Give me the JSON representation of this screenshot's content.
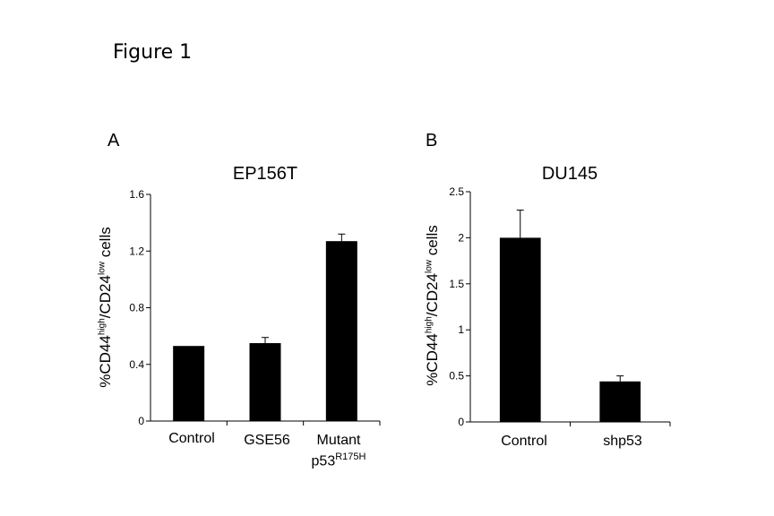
{
  "figure_title": "Figure 1",
  "panels": [
    {
      "letter": "A"
    },
    {
      "letter": "B"
    }
  ],
  "ylabel_parts": {
    "prefix": "%CD44",
    "sup1": "high",
    "mid": "/CD24",
    "sup2": "low",
    "suffix": " cells"
  },
  "mutant_label": {
    "line1": "Mutant",
    "line2_base": "p53",
    "line2_sup": "R175H"
  },
  "colors": {
    "bar": "#000000",
    "axis": "#000000",
    "background": "#ffffff"
  },
  "chart_data": [
    {
      "type": "bar",
      "title": "EP156T",
      "ylabel": "%CD44high/CD24low cells",
      "categories": [
        "Control",
        "GSE56",
        "Mutant p53R175H"
      ],
      "values": [
        0.53,
        0.55,
        1.27
      ],
      "errors": [
        0,
        0.04,
        0.05
      ],
      "ylim": [
        0,
        1.6
      ],
      "yticks": [
        0,
        0.4,
        0.8,
        1.2,
        1.6
      ],
      "ytick_labels": [
        "0",
        "0.4",
        "0.8",
        "1.2",
        "1.6"
      ],
      "grid": false,
      "legend": "none"
    },
    {
      "type": "bar",
      "title": "DU145",
      "ylabel": "%CD44high/CD24low cells",
      "categories": [
        "Control",
        "shp53"
      ],
      "values": [
        2.0,
        0.44
      ],
      "errors": [
        0.3,
        0.06
      ],
      "ylim": [
        0,
        2.5
      ],
      "yticks": [
        0,
        0.5,
        1,
        1.5,
        2,
        2.5
      ],
      "ytick_labels": [
        "0",
        "0.5",
        "1",
        "1.5",
        "2",
        "2.5"
      ],
      "grid": false,
      "legend": "none"
    }
  ]
}
